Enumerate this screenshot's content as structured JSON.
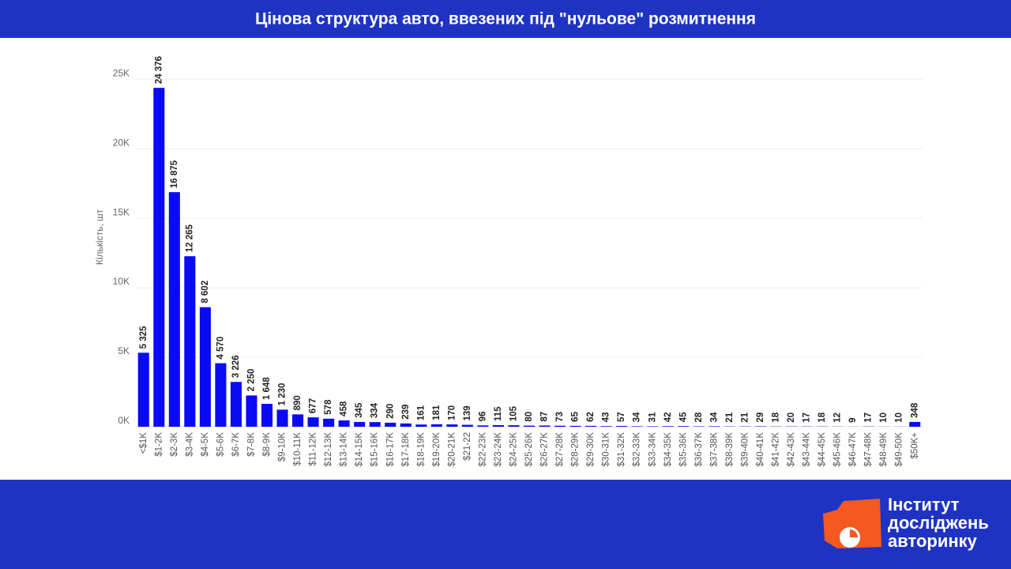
{
  "chart_data": {
    "type": "bar",
    "title": "Цінова структура авто, ввезених під \"нульове\" розмитнення",
    "ylabel": "Кількість, шт",
    "categories": [
      "<$1K",
      "$1-2K",
      "$2-3K",
      "$3-4K",
      "$4-5K",
      "$5-6K",
      "$6-7K",
      "$7-8K",
      "$8-9K",
      "$9-10K",
      "$10-11K",
      "$11-12K",
      "$12-13K",
      "$13-14K",
      "$14-15K",
      "$15-16K",
      "$16-17K",
      "$17-18K",
      "$18-19K",
      "$19-20K",
      "$20-21K",
      "$21-22",
      "$22-23K",
      "$23-24K",
      "$24-25K",
      "$25-26K",
      "$26-27K",
      "$27-28K",
      "$28-29K",
      "$29-30K",
      "$30-31K",
      "$31-32K",
      "$32-33K",
      "$33-34K",
      "$34-35K",
      "$35-36K",
      "$36-37K",
      "$37-38K",
      "$38-39K",
      "$39-40K",
      "$40-41K",
      "$41-42K",
      "$42-43K",
      "$43-44K",
      "$44-45K",
      "$45-46K",
      "$46-47K",
      "$47-48K",
      "$48-49K",
      "$49-50K",
      "$50K+"
    ],
    "values": [
      5325,
      24376,
      16875,
      12265,
      8602,
      4570,
      3226,
      2250,
      1648,
      1230,
      890,
      677,
      578,
      458,
      345,
      334,
      290,
      239,
      161,
      181,
      170,
      139,
      96,
      115,
      105,
      80,
      87,
      73,
      65,
      62,
      43,
      57,
      34,
      31,
      42,
      45,
      28,
      34,
      21,
      21,
      29,
      18,
      20,
      17,
      18,
      12,
      9,
      17,
      10,
      10,
      348
    ],
    "value_labels": [
      "5 325",
      "24 376",
      "16 875",
      "12 265",
      "8 602",
      "4 570",
      "3 226",
      "2 250",
      "1 648",
      "1 230",
      "890",
      "677",
      "578",
      "458",
      "345",
      "334",
      "290",
      "239",
      "161",
      "181",
      "170",
      "139",
      "96",
      "115",
      "105",
      "80",
      "87",
      "73",
      "65",
      "62",
      "43",
      "57",
      "34",
      "31",
      "42",
      "45",
      "28",
      "34",
      "21",
      "21",
      "29",
      "18",
      "20",
      "17",
      "18",
      "12",
      "9",
      "17",
      "10",
      "10",
      "348"
    ],
    "color": "#0a0af5",
    "ylim": [
      0,
      27000
    ],
    "yticks": [
      {
        "value": 0,
        "label": "0K"
      },
      {
        "value": 5000,
        "label": "5K"
      },
      {
        "value": 10000,
        "label": "10K"
      },
      {
        "value": 15000,
        "label": "15K"
      },
      {
        "value": 20000,
        "label": "20K"
      },
      {
        "value": 25000,
        "label": "25K"
      }
    ],
    "grid": true
  },
  "brand": {
    "lines": [
      "Інститут",
      "досліджень",
      "авторинку"
    ]
  }
}
